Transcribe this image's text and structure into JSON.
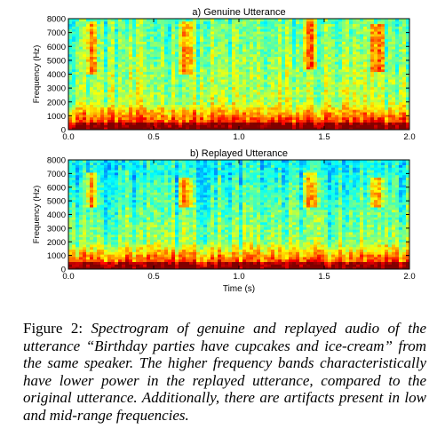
{
  "chart_data": [
    {
      "type": "heatmap",
      "title": "a) Genuine Utterance",
      "xlabel": "",
      "ylabel": "Frequency (Hz)",
      "xlim": [
        0.0,
        2.0
      ],
      "ylim": [
        0,
        8000
      ],
      "xticks": [
        "0.0",
        "0.5",
        "1.0",
        "1.5",
        "2.0"
      ],
      "yticks": [
        "0",
        "1000",
        "2000",
        "3000",
        "4000",
        "5000",
        "6000",
        "7000",
        "8000"
      ],
      "colormap": [
        "#1e90ff",
        "#2ecfd0",
        "#9be86a",
        "#f5f542",
        "#ff9a1a",
        "#e02010",
        "#8b0000"
      ],
      "high_energy_bands": [
        {
          "t": [
            0.1,
            0.17
          ],
          "f": [
            4000,
            7800
          ]
        },
        {
          "t": [
            0.64,
            0.73
          ],
          "f": [
            4000,
            7800
          ]
        },
        {
          "t": [
            1.38,
            1.46
          ],
          "f": [
            4300,
            8000
          ]
        },
        {
          "t": [
            1.77,
            1.85
          ],
          "f": [
            4200,
            7600
          ]
        }
      ],
      "grid": false
    },
    {
      "type": "heatmap",
      "title": "b) Replayed Utterance",
      "xlabel": "Time (s)",
      "ylabel": "Frequency (Hz)",
      "xlim": [
        0.0,
        2.0
      ],
      "ylim": [
        0,
        8000
      ],
      "xticks": [
        "0.0",
        "0.5",
        "1.0",
        "1.5",
        "2.0"
      ],
      "yticks": [
        "0",
        "1000",
        "2000",
        "3000",
        "4000",
        "5000",
        "6000",
        "7000",
        "8000"
      ],
      "colormap": [
        "#1e90ff",
        "#2ecfd0",
        "#9be86a",
        "#f5f542",
        "#ff9a1a",
        "#e02010",
        "#8b0000"
      ],
      "high_energy_bands": [
        {
          "t": [
            0.1,
            0.17
          ],
          "f": [
            4500,
            7000
          ]
        },
        {
          "t": [
            0.64,
            0.73
          ],
          "f": [
            4500,
            6800
          ]
        },
        {
          "t": [
            1.38,
            1.46
          ],
          "f": [
            4500,
            7000
          ]
        },
        {
          "t": [
            1.77,
            1.85
          ],
          "f": [
            4500,
            6800
          ]
        }
      ],
      "grid": false
    }
  ],
  "caption": {
    "label": "Figure 2: ",
    "text": "Spectrogram of genuine and replayed audio of the utterance “Birthday parties have cupcakes and ice-cream” from the same speaker. The higher frequency bands characteristically have lower power in the replayed utterance, compared to the original utterance. Additionally, there are artifacts present in low and mid-range frequencies."
  }
}
